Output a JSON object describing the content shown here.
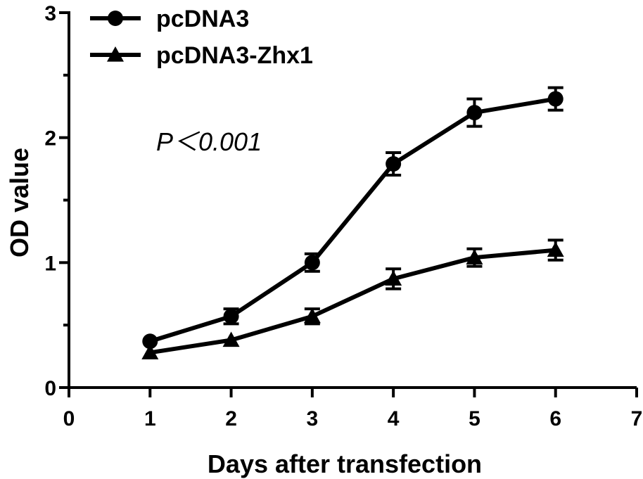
{
  "chart_data": {
    "type": "line",
    "xlabel": "Days after transfection",
    "ylabel": "OD value",
    "xlim": [
      0,
      7
    ],
    "ylim": [
      0,
      3
    ],
    "x_ticks": [
      "0",
      "1",
      "2",
      "3",
      "4",
      "5",
      "6",
      "7"
    ],
    "y_ticks": [
      "0",
      "1",
      "2",
      "3"
    ],
    "y_minor_ticks": [
      0.5,
      1.5,
      2.5
    ],
    "grid": false,
    "legend_position": "top-left",
    "annotation": "P＜0.001",
    "series": [
      {
        "name": "pcDNA3",
        "marker": "circle",
        "color": "#000000",
        "x": [
          1,
          2,
          3,
          4,
          5,
          6
        ],
        "y": [
          0.37,
          0.57,
          1.0,
          1.79,
          2.2,
          2.31
        ],
        "error": [
          0.0,
          0.06,
          0.07,
          0.09,
          0.11,
          0.09
        ]
      },
      {
        "name": "pcDNA3-Zhx1",
        "marker": "triangle",
        "color": "#000000",
        "x": [
          1,
          2,
          3,
          4,
          5,
          6
        ],
        "y": [
          0.28,
          0.38,
          0.57,
          0.87,
          1.04,
          1.1
        ],
        "error": [
          0.0,
          0.0,
          0.06,
          0.08,
          0.07,
          0.08
        ]
      }
    ]
  }
}
